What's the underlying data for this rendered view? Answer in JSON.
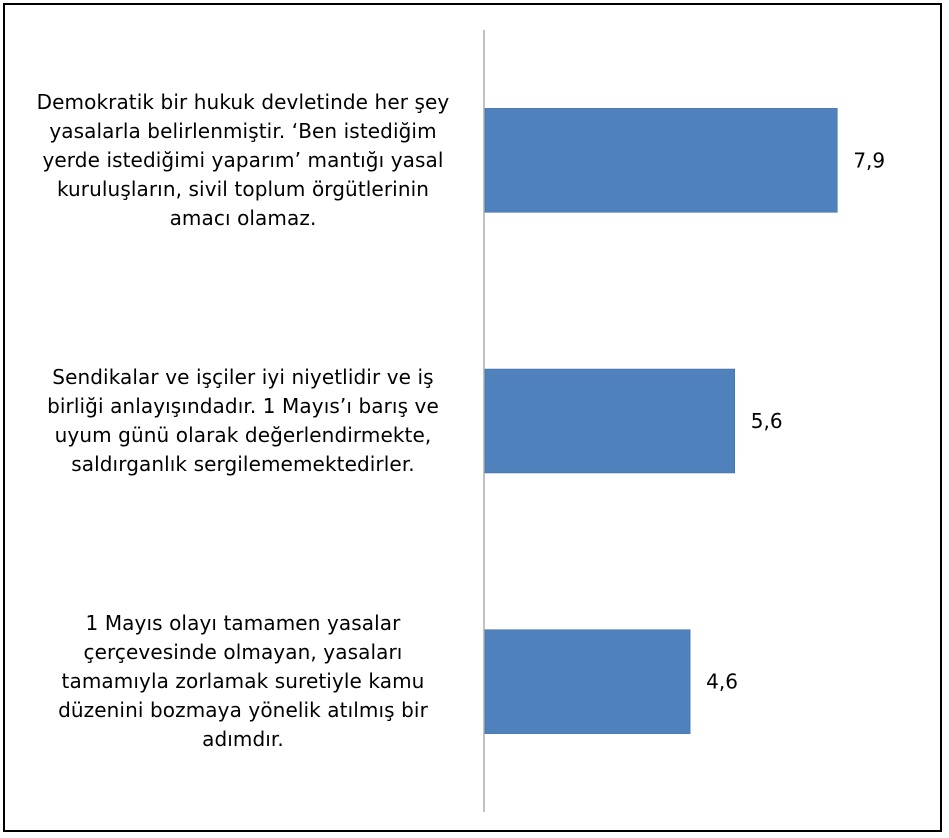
{
  "chart_data": {
    "type": "bar",
    "orientation": "horizontal",
    "categories": [
      [
        "Demokratik bir hukuk devletinde her şey",
        "yasalarla belirlenmiştir. ‘Ben istediğim",
        "yerde istediğimi yaparım’ mantığı yasal",
        "kuruluşların, sivil toplum örgütlerinin",
        "amacı olamaz."
      ],
      [
        "Sendikalar ve işçiler iyi niyetlidir ve iş",
        "birliği anlayışındadır. 1 Mayıs’ı barış ve",
        "uyum günü olarak değerlendirmekte,",
        "saldırganlık sergilememektedirler."
      ],
      [
        "1 Mayıs olayı tamamen yasalar",
        "çerçevesinde olmayan, yasaları",
        "tamamıyla zorlamak suretiyle kamu",
        "düzenini bozmaya yönelik atılmış bir",
        "adımdır."
      ]
    ],
    "values": [
      7.9,
      5.6,
      4.6
    ],
    "value_labels": [
      "7,9",
      "5,6",
      "4,6"
    ],
    "bar_color": "#4F81BD",
    "axis_color": "#868686",
    "xlim": [
      0,
      10
    ]
  }
}
